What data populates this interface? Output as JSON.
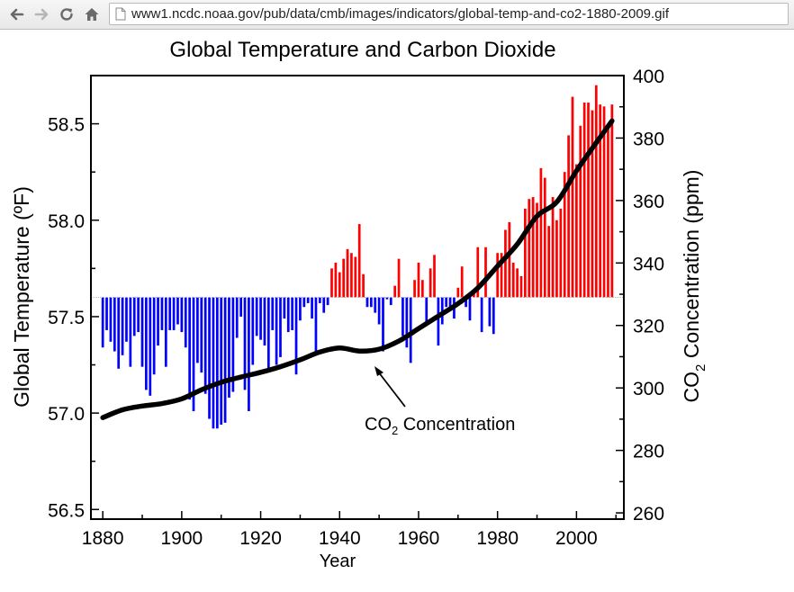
{
  "browser": {
    "url": "www1.ncdc.noaa.gov/pub/data/cmb/images/indicators/global-temp-and-co2-1880-2009.gif",
    "icons": [
      "back-arrow-icon",
      "forward-arrow-icon",
      "reload-icon",
      "home-icon",
      "page-icon"
    ]
  },
  "chart_data": {
    "type": "bar",
    "title": "Global Temperature and Carbon Dioxide",
    "xlabel": "Year",
    "ylabel_left": "Global Temperature (ºF)",
    "ylabel_right_main": "CO",
    "ylabel_right_sub": "2",
    "ylabel_right_rest": " Concentration (ppm)",
    "xlim": [
      1877,
      2012
    ],
    "ylim_left": [
      56.45,
      58.75
    ],
    "ylim_right": [
      258,
      400
    ],
    "baseline": 57.6,
    "x_ticks": [
      "1880",
      "1900",
      "1920",
      "1940",
      "1960",
      "1980",
      "2000"
    ],
    "y_ticks_left": [
      "56.5",
      "57.0",
      "57.5",
      "58.0",
      "58.5"
    ],
    "y_ticks_right": [
      "260",
      "280",
      "300",
      "320",
      "340",
      "360",
      "380",
      "400"
    ],
    "colors": {
      "above": "#ff0000",
      "below": "#0000ff",
      "co2_line": "#000000",
      "baseline": "#bbbbbb"
    },
    "temperature": {
      "start_year": 1880,
      "values": [
        57.34,
        57.43,
        57.37,
        57.32,
        57.23,
        57.3,
        57.37,
        57.24,
        57.4,
        57.42,
        57.24,
        57.12,
        57.09,
        57.2,
        57.35,
        57.43,
        57.24,
        57.43,
        57.43,
        57.46,
        57.42,
        57.34,
        57.07,
        57.01,
        57.26,
        57.21,
        57.1,
        56.97,
        56.92,
        56.92,
        56.94,
        56.95,
        57.08,
        57.11,
        57.39,
        57.5,
        57.12,
        57.01,
        57.25,
        57.4,
        57.38,
        57.35,
        57.22,
        57.43,
        57.25,
        57.29,
        57.49,
        57.42,
        57.43,
        57.2,
        57.48,
        57.55,
        57.57,
        57.49,
        57.31,
        57.57,
        57.52,
        57.56,
        57.75,
        57.78,
        57.73,
        57.8,
        57.85,
        57.83,
        57.81,
        57.98,
        57.72,
        57.55,
        57.55,
        57.52,
        57.46,
        57.32,
        57.59,
        57.56,
        57.66,
        57.8,
        57.4,
        57.34,
        57.26,
        57.69,
        57.78,
        57.69,
        57.47,
        57.75,
        57.82,
        57.35,
        57.46,
        57.55,
        57.54,
        57.49,
        57.65,
        57.76,
        57.55,
        57.48,
        57.62,
        57.86,
        57.42,
        57.86,
        57.45,
        57.41,
        57.83,
        57.83,
        57.95,
        57.99,
        57.78,
        57.75,
        57.71,
        58.06,
        58.11,
        58.12,
        58.09,
        58.27,
        58.22,
        57.97,
        58.12,
        58.0,
        58.06,
        58.25,
        58.44,
        58.64,
        58.29,
        58.49,
        58.61,
        58.61,
        58.57,
        58.7,
        58.6,
        58.59,
        58.5,
        58.6
      ]
    },
    "co2": {
      "years": [
        1880,
        1885,
        1890,
        1895,
        1900,
        1905,
        1910,
        1915,
        1920,
        1925,
        1930,
        1935,
        1940,
        1945,
        1950,
        1955,
        1960,
        1965,
        1970,
        1975,
        1980,
        1985,
        1990,
        1995,
        2000,
        2005,
        2009
      ],
      "values": [
        290.5,
        293.0,
        294.2,
        295.0,
        296.5,
        299.4,
        301.8,
        303.5,
        305.0,
        306.8,
        309.0,
        311.5,
        312.8,
        311.8,
        312.4,
        315.0,
        319.0,
        323.0,
        327.0,
        332.0,
        339.0,
        346.0,
        355.0,
        359.5,
        369.5,
        378.5,
        385.5
      ]
    },
    "annotation": {
      "main": "CO",
      "sub": "2",
      "rest": " Concentration"
    }
  }
}
